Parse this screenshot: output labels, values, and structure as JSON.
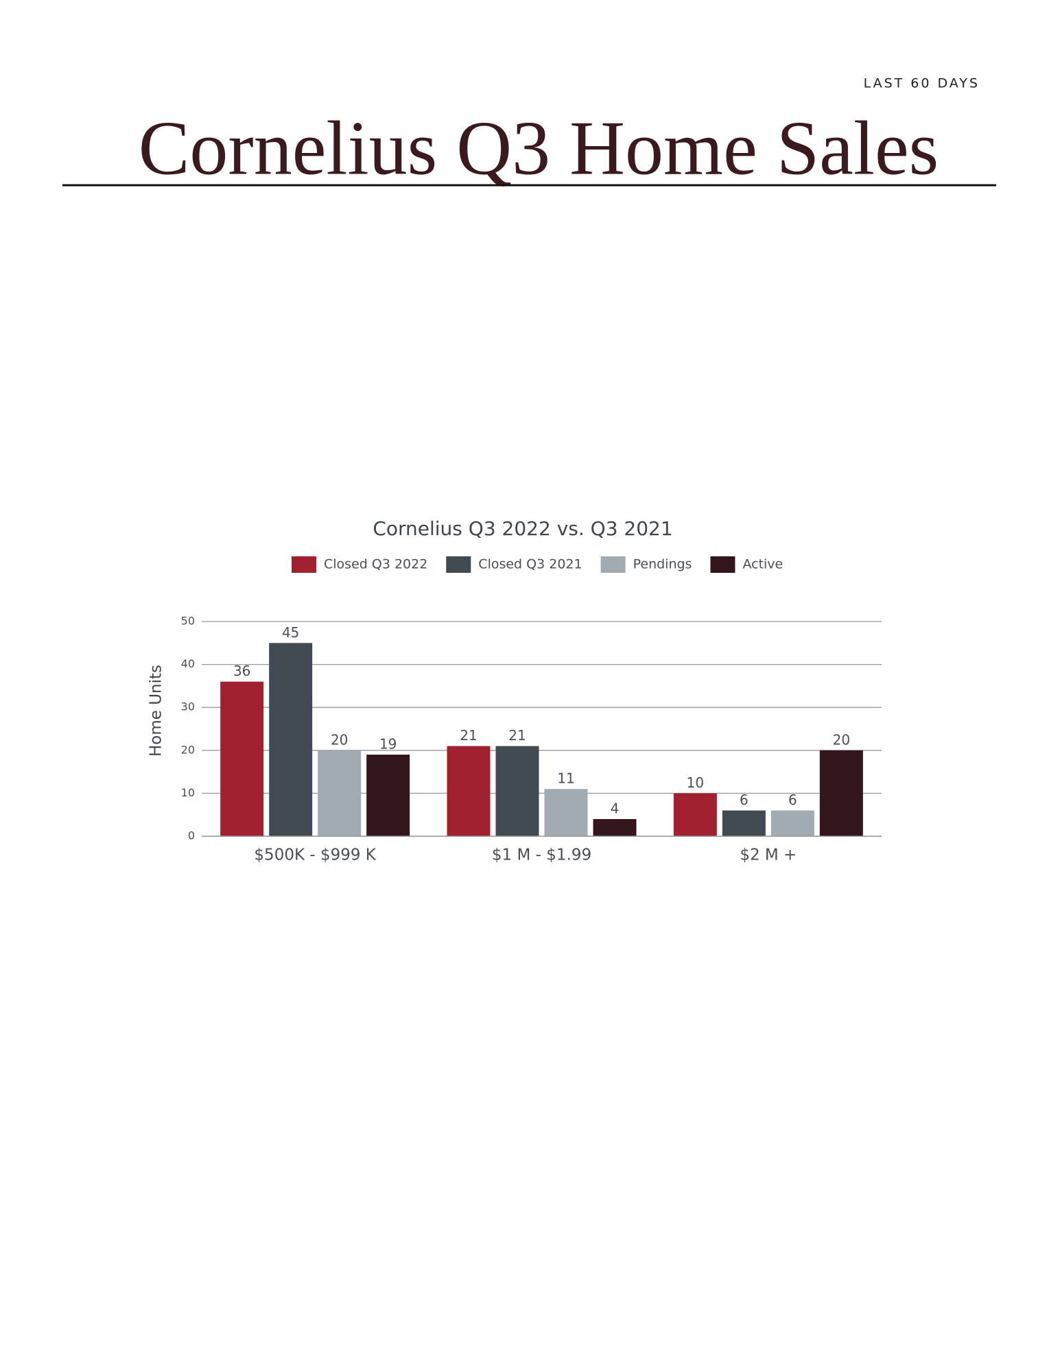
{
  "header": {
    "label": "LAST 60 DAYS",
    "title": "Cornelius Q3 Home Sales"
  },
  "chart_data": {
    "type": "bar",
    "title": "Cornelius Q3 2022 vs. Q3 2021",
    "y_label": "Home Units",
    "categories": [
      "$500K - $999 K",
      "$1 M - $1.99",
      "$2 M +"
    ],
    "series": [
      {
        "name": "Closed Q3 2022",
        "color": "#a0202f",
        "values": [
          36,
          21,
          10
        ]
      },
      {
        "name": "Closed Q3 2021",
        "color": "#414a52",
        "values": [
          45,
          21,
          6
        ]
      },
      {
        "name": "Pendings",
        "color": "#a2abb2",
        "values": [
          20,
          11,
          6
        ]
      },
      {
        "name": "Active",
        "color": "#33161b",
        "values": [
          19,
          4,
          20
        ]
      }
    ],
    "ylim": [
      0,
      50
    ],
    "yticks": [
      0,
      10,
      20,
      30,
      40,
      50
    ],
    "grid": true
  }
}
